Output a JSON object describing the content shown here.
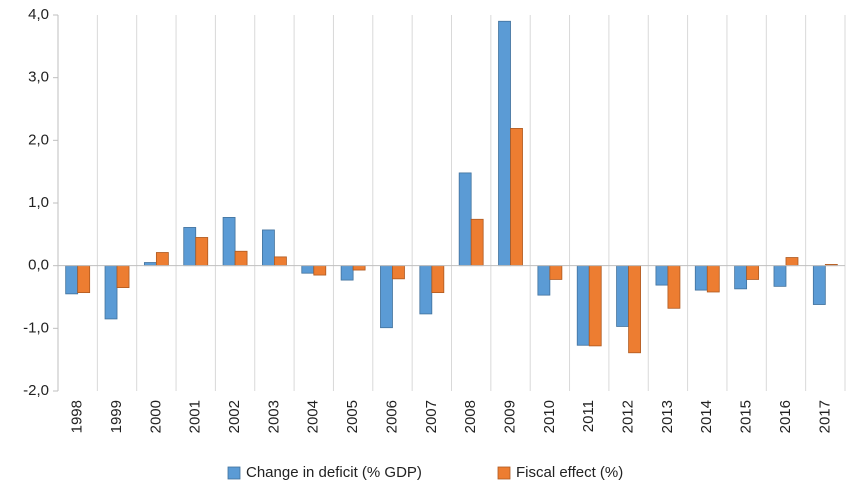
{
  "chart_data": {
    "type": "bar",
    "categories": [
      "1998",
      "1999",
      "2000",
      "2001",
      "2002",
      "2003",
      "2004",
      "2005",
      "2006",
      "2007",
      "2008",
      "2009",
      "2010",
      "2011",
      "2012",
      "2013",
      "2014",
      "2015",
      "2016",
      "2017"
    ],
    "series": [
      {
        "name": "Change in deficit (% GDP)",
        "color": "#5b9bd5",
        "values": [
          -0.45,
          -0.85,
          0.05,
          0.61,
          0.77,
          0.57,
          -0.12,
          -0.23,
          -0.99,
          -0.77,
          1.48,
          3.9,
          -0.47,
          -1.27,
          -0.97,
          -0.31,
          -0.39,
          -0.37,
          -0.33,
          -0.62
        ]
      },
      {
        "name": "Fiscal effect (%)",
        "color": "#ed7d31",
        "values": [
          -0.43,
          -0.35,
          0.21,
          0.45,
          0.23,
          0.14,
          -0.15,
          -0.07,
          -0.21,
          -0.43,
          0.74,
          2.19,
          -0.22,
          -1.28,
          -1.39,
          -0.68,
          -0.42,
          -0.22,
          0.13,
          0.02
        ]
      }
    ],
    "ylim": [
      -2,
      4
    ],
    "yticks": [
      {
        "value": -2,
        "label": "-2,0"
      },
      {
        "value": -1,
        "label": "-1,0"
      },
      {
        "value": 0,
        "label": "0,0"
      },
      {
        "value": 1,
        "label": "1,0"
      },
      {
        "value": 2,
        "label": "2,0"
      },
      {
        "value": 3,
        "label": "3,0"
      },
      {
        "value": 4,
        "label": "4,0"
      }
    ],
    "legend": "bottom"
  }
}
